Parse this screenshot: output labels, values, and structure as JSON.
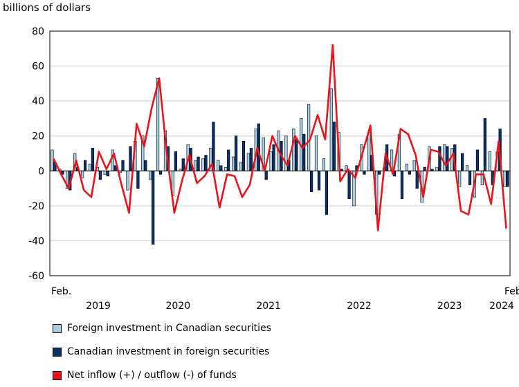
{
  "chart_data": {
    "type": "bar",
    "ylabel": "billions of dollars",
    "ylim": [
      -60,
      80
    ],
    "yticks": [
      80,
      60,
      40,
      20,
      0,
      -20,
      -40,
      -60
    ],
    "x_start_label": "Feb.",
    "x_end_label": "Feb.",
    "year_labels": [
      "2019",
      "2020",
      "2021",
      "2022",
      "2023",
      "2024"
    ],
    "x": [
      "2019-02",
      "2019-03",
      "2019-04",
      "2019-05",
      "2019-06",
      "2019-07",
      "2019-08",
      "2019-09",
      "2019-10",
      "2019-11",
      "2019-12",
      "2020-01",
      "2020-02",
      "2020-03",
      "2020-04",
      "2020-05",
      "2020-06",
      "2020-07",
      "2020-08",
      "2020-09",
      "2020-10",
      "2020-11",
      "2020-12",
      "2021-01",
      "2021-02",
      "2021-03",
      "2021-04",
      "2021-05",
      "2021-06",
      "2021-07",
      "2021-08",
      "2021-09",
      "2021-10",
      "2021-11",
      "2021-12",
      "2022-01",
      "2022-02",
      "2022-03",
      "2022-04",
      "2022-05",
      "2022-06",
      "2022-07",
      "2022-08",
      "2022-09",
      "2022-10",
      "2022-11",
      "2022-12",
      "2023-01",
      "2023-02",
      "2023-03",
      "2023-04",
      "2023-05",
      "2023-06",
      "2023-07",
      "2023-08",
      "2023-09",
      "2023-10",
      "2023-11",
      "2023-12",
      "2024-01",
      "2024-02"
    ],
    "series": [
      {
        "name": "Foreign investment in Canadian securities",
        "color": "#a6cee3",
        "values": [
          12,
          1,
          -10,
          10,
          -4,
          4,
          2,
          -2,
          12,
          -1,
          -11,
          17,
          20,
          -5,
          53,
          23,
          -14,
          1,
          15,
          6,
          7,
          13,
          6,
          2,
          8,
          5,
          10,
          24,
          19,
          11,
          23,
          20,
          24,
          30,
          38,
          20,
          7,
          47,
          22,
          3,
          -20,
          15,
          22,
          -25,
          2,
          12,
          21,
          4,
          6,
          -18,
          14,
          2,
          15,
          13,
          -9,
          3,
          -15,
          -8,
          11,
          11,
          -9
        ]
      },
      {
        "name": "Canadian investment in foreign securities",
        "color": "#08306b",
        "values": [
          5,
          -2,
          -11,
          2,
          6,
          13,
          -5,
          -3,
          3,
          6,
          14,
          -10,
          6,
          -42,
          -2,
          14,
          11,
          7,
          13,
          8,
          9,
          28,
          3,
          12,
          20,
          17,
          13,
          27,
          -5,
          15,
          17,
          6,
          18,
          21,
          -12,
          -11,
          -25,
          28,
          1,
          -16,
          3,
          -2,
          9,
          -2,
          15,
          -3,
          -16,
          -2,
          -10,
          2,
          1,
          14,
          14,
          15,
          10,
          -8,
          12,
          30,
          -8,
          24,
          -9
        ]
      },
      {
        "name": "Net inflow (+) / outflow (-) of funds",
        "color": "#e8141b",
        "values": [
          7,
          -2,
          -10,
          6,
          -11,
          -15,
          11,
          1,
          10,
          -8,
          -24,
          27,
          14,
          36,
          53,
          10,
          -24,
          -6,
          9,
          -7,
          -3,
          4,
          -21,
          -2,
          -3,
          -15,
          -8,
          13,
          0,
          20,
          10,
          3,
          20,
          13,
          18,
          32,
          18,
          72,
          -6,
          1,
          -4,
          11,
          26,
          -34,
          10,
          -2,
          24,
          21,
          9,
          -15,
          12,
          11,
          3,
          10,
          -23,
          -25,
          -2,
          -2,
          -19,
          17,
          -33
        ]
      }
    ]
  }
}
